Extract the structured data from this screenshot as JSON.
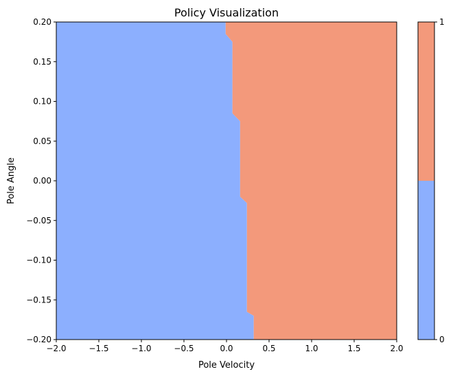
{
  "chart_data": {
    "type": "heatmap",
    "title": "Policy Visualization",
    "xlabel": "Pole Velocity",
    "ylabel": "Pole Angle",
    "xlim": [
      -2.0,
      2.0
    ],
    "ylim": [
      -0.2,
      0.2
    ],
    "x_ticks": [
      -2.0,
      -1.5,
      -1.0,
      -0.5,
      0.0,
      0.5,
      1.0,
      1.5,
      2.0
    ],
    "x_tick_labels": [
      "−2.0",
      "−1.5",
      "−1.0",
      "−0.5",
      "0.0",
      "0.5",
      "1.0",
      "1.5",
      "2.0"
    ],
    "y_ticks": [
      -0.2,
      -0.15,
      -0.1,
      -0.05,
      0.0,
      0.05,
      0.1,
      0.15,
      0.2
    ],
    "y_tick_labels": [
      "−0.20",
      "−0.15",
      "−0.10",
      "−0.05",
      "0.00",
      "0.05",
      "0.10",
      "0.15",
      "0.20"
    ],
    "grid": false,
    "classes": [
      {
        "value": 0,
        "color": "#8caffe"
      },
      {
        "value": 1,
        "color": "#f3997b"
      }
    ],
    "boundary": [
      {
        "angle": 0.2,
        "velocity": -0.01
      },
      {
        "angle": 0.185,
        "velocity": -0.01
      },
      {
        "angle": 0.175,
        "velocity": 0.07
      },
      {
        "angle": 0.085,
        "velocity": 0.07
      },
      {
        "angle": 0.075,
        "velocity": 0.16
      },
      {
        "angle": -0.02,
        "velocity": 0.16
      },
      {
        "angle": -0.028,
        "velocity": 0.24
      },
      {
        "angle": -0.165,
        "velocity": 0.24
      },
      {
        "angle": -0.17,
        "velocity": 0.32
      },
      {
        "angle": -0.2,
        "velocity": 0.32
      }
    ],
    "colorbar": {
      "tick_labels": [
        "0",
        "1"
      ],
      "split": 0.5
    }
  }
}
